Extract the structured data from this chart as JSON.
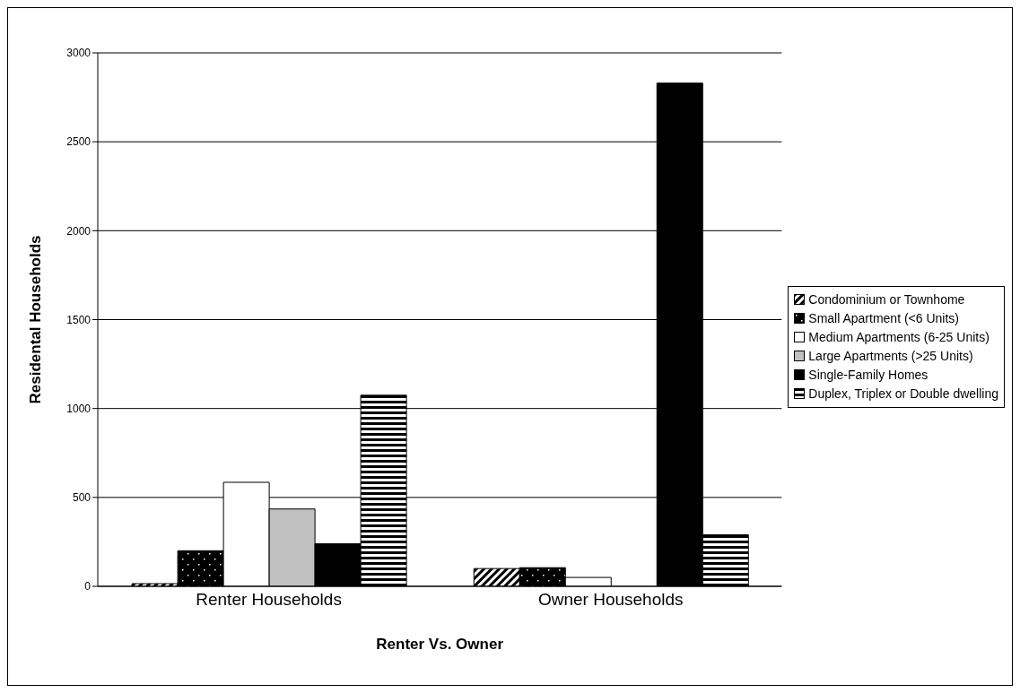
{
  "chart_data": {
    "type": "bar",
    "xlabel": "Renter Vs. Owner",
    "ylabel": "Residental Households",
    "categories": [
      "Renter Households",
      "Owner Households"
    ],
    "series": [
      {
        "name": "Condominium or Townhome",
        "color": "#000000",
        "values": [
          15,
          100
        ]
      },
      {
        "name": "Small Apartment (<6 Units)",
        "color": "#000000",
        "values": [
          200,
          105
        ]
      },
      {
        "name": "Medium Apartments (6-25 Units)",
        "color": "#ffffff",
        "values": [
          585,
          50
        ]
      },
      {
        "name": "Large Apartments (>25 Units)",
        "color": "#c0c0c0",
        "values": [
          435,
          0
        ]
      },
      {
        "name": "Single-Family Homes",
        "color": "#000000",
        "values": [
          240,
          2830
        ]
      },
      {
        "name": "Duplex, Triplex or Double dwelling",
        "color": "#000000",
        "values": [
          1075,
          290
        ]
      }
    ],
    "ylim": [
      0,
      3000
    ],
    "yticks": [
      0,
      500,
      1000,
      1500,
      2000,
      2500,
      3000
    ],
    "grid": "y",
    "legend": "right"
  }
}
